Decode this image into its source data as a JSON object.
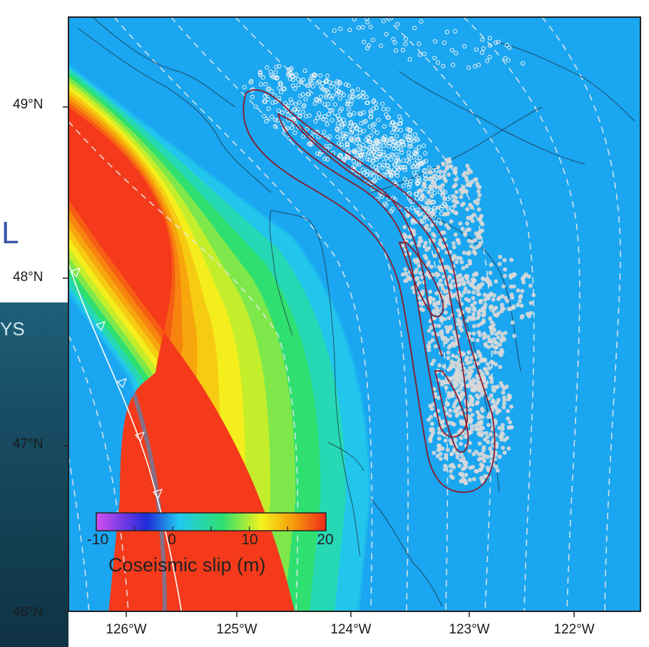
{
  "map": {
    "lat_labels": [
      "49°N",
      "48°N",
      "47°N",
      "46°N"
    ],
    "lon_labels": [
      "126°W",
      "125°W",
      "124°W",
      "123°W",
      "122°W"
    ],
    "extent": {
      "lon_min": -126.5,
      "lon_max": -121.5,
      "lat_min": 46.0,
      "lat_max": 49.5
    }
  },
  "legend": {
    "title": "Coseismic slip (m)",
    "ticks": [
      "-10",
      "0",
      "10",
      "20"
    ],
    "range": [
      -10,
      20
    ],
    "colormap": [
      "#d34ef0",
      "#1f2bd8",
      "#20c8f0",
      "#2ee070",
      "#f4f21c",
      "#f59a0a",
      "#ee2a1c"
    ]
  },
  "colors": {
    "ocean": "#1aa6f0",
    "slip_max": "#f43a1a",
    "tremor_contour": "#8b1a2a",
    "tremor_dots": "#d8d8d8",
    "dashed_lines": "#e8e8e8"
  },
  "background_slide": {
    "fragments": [
      "L",
      "YS"
    ]
  }
}
